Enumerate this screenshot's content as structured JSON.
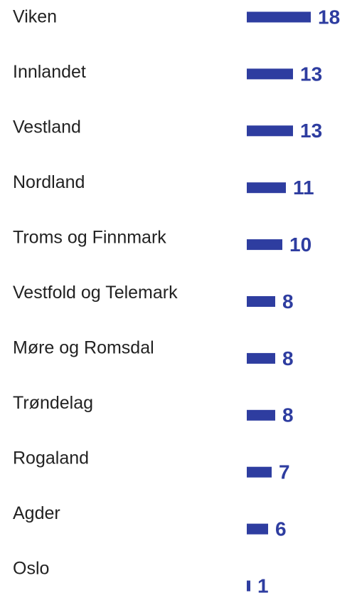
{
  "chart_data": {
    "type": "bar",
    "orientation": "horizontal",
    "categories": [
      "Viken",
      "Innlandet",
      "Vestland",
      "Nordland",
      "Troms og Finnmark",
      "Vestfold og Telemark",
      "Møre og Romsdal",
      "Trøndelag",
      "Rogaland",
      "Agder",
      "Oslo"
    ],
    "values": [
      18,
      13,
      13,
      11,
      10,
      8,
      8,
      8,
      7,
      6,
      1
    ],
    "color": "#2e3da0"
  }
}
